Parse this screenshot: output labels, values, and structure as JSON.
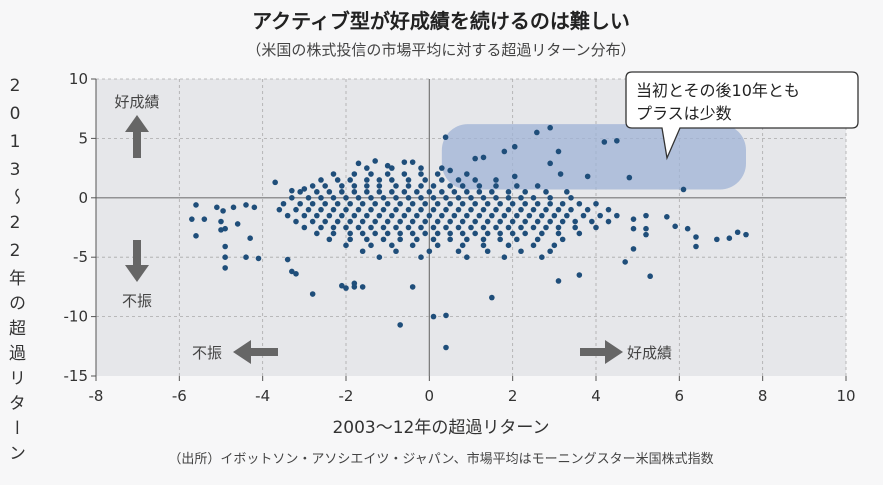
{
  "chart_data": {
    "type": "scatter",
    "title": "アクティブ型が好成績を続けるのは難しい",
    "subtitle": "（米国の株式投信の市場平均に対する超過リターン分布）",
    "xlabel": "2003〜12年の超過リターン",
    "ylabel": "2013〜22年の超過リターン",
    "xlim": [
      -8,
      10
    ],
    "ylim": [
      -15,
      10
    ],
    "xticks": [
      "-8",
      "-6",
      "-4",
      "-2",
      "0",
      "2",
      "4",
      "6",
      "8",
      "10"
    ],
    "yticks": [
      "10",
      "5",
      "0",
      "-5",
      "-10",
      "-15"
    ],
    "grid": true,
    "point_color": "#1f4e7a",
    "plot_background": "#e6e7ea",
    "highlight_color": "#9fb3d6",
    "source": "（出所）イボットソン・アソシエイツ・ジャパン、市場平均はモーニングスター米国株式指数",
    "callout": {
      "line1": "当初とその後10年とも",
      "line2": "プラスは少数"
    },
    "annotations": {
      "up": "好成績",
      "down": "不振",
      "left": "不振",
      "right": "好成績"
    },
    "points": [
      [
        0.39,
        5.1
      ],
      [
        2.58,
        5.5
      ],
      [
        2.9,
        5.9
      ],
      [
        4.2,
        4.7
      ],
      [
        4.5,
        4.8
      ],
      [
        3.1,
        3.9
      ],
      [
        1.8,
        3.9
      ],
      [
        2.05,
        4.3
      ],
      [
        1.1,
        3.3
      ],
      [
        1.3,
        3.4
      ],
      [
        2.9,
        2.9
      ],
      [
        4.8,
        1.7
      ],
      [
        6.1,
        0.7
      ],
      [
        0.5,
        2.3
      ],
      [
        2.05,
        1.8
      ],
      [
        3.15,
        2.0
      ],
      [
        3.8,
        1.8
      ],
      [
        5.7,
        -1.6
      ],
      [
        5.9,
        -2.4
      ],
      [
        6.2,
        -2.6
      ],
      [
        6.4,
        -3.3
      ],
      [
        6.4,
        -4.1
      ],
      [
        6.9,
        -3.5
      ],
      [
        7.2,
        -3.4
      ],
      [
        7.4,
        -2.9
      ],
      [
        7.6,
        -3.1
      ],
      [
        5.3,
        -6.6
      ],
      [
        5.2,
        -1.5
      ],
      [
        4.9,
        -1.8
      ],
      [
        4.9,
        -2.6
      ],
      [
        5.2,
        -2.6
      ],
      [
        5.2,
        -3.1
      ],
      [
        4.9,
        -4.3
      ],
      [
        4.7,
        -5.4
      ],
      [
        1.5,
        -8.4
      ],
      [
        3.6,
        -6.5
      ],
      [
        3.1,
        -7.0
      ],
      [
        -0.7,
        -10.7
      ],
      [
        0.1,
        -10.0
      ],
      [
        0.4,
        -9.9
      ],
      [
        0.4,
        -12.6
      ],
      [
        -5.6,
        -0.6
      ],
      [
        -5.7,
        -1.8
      ],
      [
        -5.4,
        -1.8
      ],
      [
        -5.6,
        -3.2
      ],
      [
        -5.1,
        -0.8
      ],
      [
        -4.95,
        -1.1
      ],
      [
        -4.7,
        -0.8
      ],
      [
        -4.6,
        -2.2
      ],
      [
        -5.0,
        -2.0
      ],
      [
        -5.0,
        -2.7
      ],
      [
        -4.9,
        -2.6
      ],
      [
        -4.9,
        -4.1
      ],
      [
        -4.9,
        -5.0
      ],
      [
        -4.9,
        -5.9
      ],
      [
        -4.4,
        -5.0
      ],
      [
        -4.1,
        -5.1
      ],
      [
        -4.3,
        -3.4
      ],
      [
        -4.4,
        -0.6
      ],
      [
        -4.2,
        -0.8
      ],
      [
        -3.7,
        1.3
      ],
      [
        -3.3,
        0.6
      ],
      [
        -3.0,
        0.75
      ],
      [
        -3.4,
        -5.2
      ],
      [
        -3.3,
        -6.2
      ],
      [
        -3.2,
        -6.4
      ],
      [
        -2.8,
        -8.1
      ],
      [
        -2.1,
        -7.4
      ],
      [
        -2.0,
        -7.6
      ],
      [
        -1.8,
        -7.2
      ],
      [
        -1.8,
        -7.5
      ],
      [
        -1.6,
        -7.5
      ],
      [
        -0.4,
        -7.5
      ],
      [
        -1.7,
        2.9
      ],
      [
        -1.3,
        3.1
      ],
      [
        -1.0,
        2.7
      ],
      [
        -0.6,
        3.0
      ],
      [
        -0.4,
        3.0
      ]
    ],
    "dense_rows": [
      {
        "y": 2.5,
        "x": [
          -1.5,
          -0.9,
          -0.2,
          0.3
        ]
      },
      {
        "y": 2.0,
        "x": [
          -2.3,
          -1.8,
          -1.4,
          -1.0,
          -0.6,
          -0.2,
          0.2,
          0.9
        ]
      },
      {
        "y": 1.5,
        "x": [
          -2.6,
          -2.2,
          -1.9,
          -1.5,
          -1.2,
          -0.9,
          -0.5,
          -0.1,
          0.3,
          0.7,
          1.1,
          1.6
        ]
      },
      {
        "y": 1.0,
        "x": [
          -2.8,
          -2.5,
          -2.1,
          -1.8,
          -1.5,
          -1.2,
          -0.8,
          -0.5,
          -0.2,
          0.1,
          0.5,
          0.8,
          1.2,
          1.6,
          2.1,
          2.6
        ]
      },
      {
        "y": 0.5,
        "x": [
          -3.1,
          -2.7,
          -2.4,
          -2.1,
          -1.8,
          -1.5,
          -1.2,
          -0.9,
          -0.6,
          -0.3,
          0,
          0.3,
          0.6,
          0.9,
          1.2,
          1.5,
          1.9,
          2.3,
          2.8,
          3.3
        ]
      },
      {
        "y": 0.0,
        "x": [
          -3.3,
          -2.9,
          -2.6,
          -2.3,
          -2.0,
          -1.7,
          -1.4,
          -1.1,
          -0.8,
          -0.5,
          -0.2,
          0.1,
          0.4,
          0.7,
          1.0,
          1.3,
          1.6,
          1.9,
          2.2,
          2.5,
          2.9,
          3.4
        ]
      },
      {
        "y": -0.5,
        "x": [
          -3.5,
          -3.1,
          -2.8,
          -2.5,
          -2.2,
          -1.9,
          -1.6,
          -1.3,
          -1.0,
          -0.7,
          -0.4,
          -0.1,
          0.2,
          0.5,
          0.8,
          1.1,
          1.4,
          1.7,
          2.0,
          2.3,
          2.6,
          2.9,
          3.2,
          3.6,
          4.0
        ]
      },
      {
        "y": -1.0,
        "x": [
          -3.6,
          -3.2,
          -2.9,
          -2.6,
          -2.3,
          -2.0,
          -1.7,
          -1.4,
          -1.1,
          -0.8,
          -0.5,
          -0.2,
          0.1,
          0.4,
          0.7,
          1.0,
          1.3,
          1.6,
          1.9,
          2.2,
          2.5,
          2.8,
          3.1,
          3.4,
          3.8,
          4.3
        ]
      },
      {
        "y": -1.5,
        "x": [
          -3.4,
          -3.0,
          -2.7,
          -2.4,
          -2.1,
          -1.8,
          -1.5,
          -1.2,
          -0.9,
          -0.6,
          -0.3,
          0,
          0.3,
          0.6,
          0.9,
          1.2,
          1.5,
          1.8,
          2.1,
          2.4,
          2.7,
          3.0,
          3.3,
          3.7,
          4.1,
          4.5
        ]
      },
      {
        "y": -2.0,
        "x": [
          -3.2,
          -2.8,
          -2.5,
          -2.2,
          -1.9,
          -1.6,
          -1.3,
          -1.0,
          -0.7,
          -0.4,
          -0.1,
          0.2,
          0.5,
          0.8,
          1.1,
          1.4,
          1.7,
          2.0,
          2.3,
          2.6,
          2.9,
          3.2,
          3.5,
          3.9,
          4.3
        ]
      },
      {
        "y": -2.5,
        "x": [
          -3.0,
          -2.6,
          -2.3,
          -2.0,
          -1.7,
          -1.4,
          -1.1,
          -0.8,
          -0.5,
          -0.2,
          0.1,
          0.4,
          0.7,
          1.0,
          1.3,
          1.6,
          1.9,
          2.2,
          2.5,
          2.8,
          3.1,
          3.5,
          4.0
        ]
      },
      {
        "y": -3.0,
        "x": [
          -2.7,
          -2.3,
          -1.9,
          -1.6,
          -1.3,
          -1.0,
          -0.7,
          -0.4,
          -0.1,
          0.2,
          0.5,
          0.8,
          1.1,
          1.4,
          1.7,
          2.0,
          2.3,
          2.7,
          3.1,
          3.6
        ]
      },
      {
        "y": -3.5,
        "x": [
          -2.4,
          -1.9,
          -1.5,
          -1.1,
          -0.7,
          -0.3,
          0.1,
          0.5,
          0.9,
          1.3,
          1.7,
          2.1,
          2.6,
          3.2
        ]
      },
      {
        "y": -4.0,
        "x": [
          -2.0,
          -1.4,
          -0.9,
          -0.4,
          0.2,
          0.8,
          1.3,
          1.9,
          2.5,
          3.0
        ]
      },
      {
        "y": -4.5,
        "x": [
          -1.6,
          -0.8,
          0,
          0.7,
          1.4,
          2.2,
          2.9
        ]
      },
      {
        "y": -5.0,
        "x": [
          -1.2,
          -0.2,
          0.9,
          1.8,
          2.7
        ]
      }
    ]
  }
}
